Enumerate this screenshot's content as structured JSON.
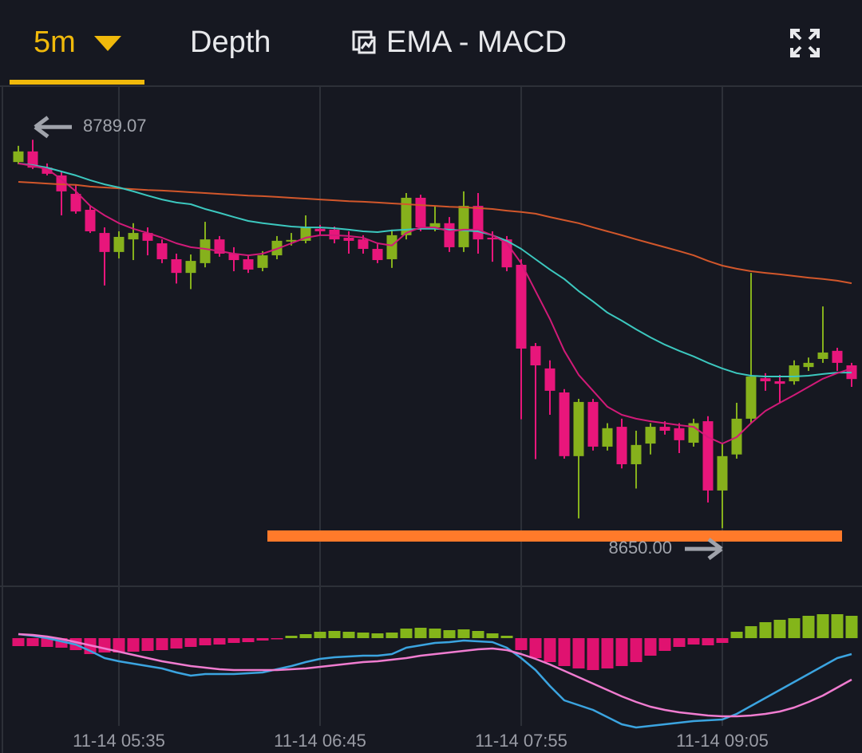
{
  "toolbar": {
    "interval": "5m",
    "tabs": [
      "Depth",
      "EMA - MACD"
    ]
  },
  "chart_data": {
    "type": "candlestick",
    "categories": [
      null,
      null,
      null,
      null,
      null,
      null,
      null,
      "11-14 05:35",
      null,
      null,
      null,
      null,
      null,
      null,
      null,
      null,
      null,
      null,
      null,
      null,
      null,
      "11-14 06:45",
      null,
      null,
      null,
      null,
      null,
      null,
      null,
      null,
      null,
      null,
      null,
      null,
      null,
      "11-14 07:55",
      null,
      null,
      null,
      null,
      null,
      null,
      null,
      null,
      null,
      null,
      null,
      null,
      null,
      "11-14 09:05",
      null,
      null,
      null,
      null,
      null,
      null,
      null,
      null,
      null
    ],
    "ylim": [
      8629.2,
      8807.7
    ],
    "up_color": "#86b11c",
    "down_color": "#e8167b",
    "open": [
      8781.1,
      8784.9,
      8779.1,
      8776.3,
      8769.7,
      8764.0,
      8755.7,
      8748.9,
      8753.4,
      8755.7,
      8752.0,
      8746.3,
      8741.4,
      8744.9,
      8753.4,
      8748.3,
      8746.3,
      8743.2,
      8747.7,
      8752.9,
      8752.9,
      8757.2,
      8756.9,
      8754.0,
      8753.4,
      8750.0,
      8746.3,
      8754.9,
      8768.3,
      8757.7,
      8759.2,
      8750.6,
      8765.4,
      8754.0,
      8753.4,
      8744.3,
      8715.2,
      8707.2,
      8698.6,
      8675.8,
      8695.2,
      8679.2,
      8686.3,
      8672.9,
      8680.3,
      8686.3,
      8685.8,
      8680.6,
      8688.3,
      8663.5,
      8676.4,
      8689.2,
      8703.7,
      8702.6,
      8702.6,
      8707.7,
      8710.6,
      8713.5,
      8708.3
    ],
    "close": [
      8784.9,
      8779.1,
      8776.9,
      8770.6,
      8763.4,
      8756.3,
      8748.9,
      8754.3,
      8755.7,
      8752.9,
      8746.3,
      8741.4,
      8745.7,
      8753.4,
      8748.3,
      8746.0,
      8742.6,
      8747.7,
      8752.9,
      8753.2,
      8757.7,
      8756.3,
      8753.4,
      8752.9,
      8750.0,
      8746.0,
      8754.9,
      8768.3,
      8757.7,
      8759.2,
      8750.6,
      8765.4,
      8753.4,
      8753.4,
      8743.4,
      8714.3,
      8708.3,
      8699.2,
      8675.8,
      8695.2,
      8679.2,
      8685.8,
      8672.9,
      8679.8,
      8686.3,
      8684.9,
      8681.5,
      8687.6,
      8663.5,
      8675.8,
      8689.2,
      8704.3,
      8702.6,
      8701.7,
      8708.3,
      8709.2,
      8712.9,
      8709.2,
      8703.4
    ],
    "high": [
      8786.9,
      8789.07,
      8780.6,
      8777.7,
      8772.9,
      8765.4,
      8757.7,
      8756.3,
      8759.2,
      8757.7,
      8753.4,
      8748.3,
      8748.0,
      8759.7,
      8754.6,
      8750.6,
      8748.0,
      8749.2,
      8754.6,
      8755.7,
      8762.0,
      8758.6,
      8758.0,
      8756.3,
      8754.9,
      8751.7,
      8756.9,
      8770.0,
      8769.4,
      8765.4,
      8761.4,
      8770.6,
      8770.0,
      8756.3,
      8754.6,
      8746.3,
      8716.3,
      8710.1,
      8699.8,
      8696.3,
      8696.3,
      8687.6,
      8689.2,
      8684.9,
      8687.6,
      8688.3,
      8687.6,
      8689.2,
      8690.1,
      8680.6,
      8694.9,
      8741.4,
      8705.5,
      8704.9,
      8710.1,
      8711.1,
      8729.4,
      8714.6,
      8709.2
    ],
    "low": [
      8780.3,
      8778.6,
      8776.3,
      8762.0,
      8762.6,
      8755.7,
      8736.9,
      8746.6,
      8746.0,
      8747.7,
      8744.9,
      8737.6,
      8735.6,
      8743.4,
      8747.2,
      8742.0,
      8741.4,
      8742.0,
      8746.3,
      8751.2,
      8752.0,
      8754.9,
      8752.0,
      8748.3,
      8748.3,
      8744.9,
      8743.2,
      8753.4,
      8756.3,
      8756.3,
      8748.9,
      8748.9,
      8748.3,
      8745.4,
      8742.0,
      8689.0,
      8674.7,
      8690.6,
      8674.9,
      8653.5,
      8677.8,
      8677.8,
      8671.4,
      8664.2,
      8676.4,
      8683.5,
      8676.9,
      8679.2,
      8659.2,
      8650,
      8674.9,
      8687.6,
      8699.2,
      8694.9,
      8701.4,
      8706.3,
      8709.2,
      8706.3,
      8700.6
    ],
    "lines": [
      {
        "color": "#d2572b",
        "values": [
          8774.0,
          8773.7,
          8773.4,
          8773.1,
          8772.9,
          8772.3,
          8772.0,
          8771.7,
          8771.4,
          8771.1,
          8770.9,
          8770.6,
          8770.3,
          8770.0,
          8769.7,
          8769.4,
          8769.1,
          8768.9,
          8768.6,
          8768.3,
          8768.0,
          8767.7,
          8767.4,
          8767.1,
          8766.9,
          8766.6,
          8766.3,
          8766.0,
          8765.7,
          8765.4,
          8765.1,
          8764.9,
          8764.6,
          8764.3,
          8763.7,
          8763.2,
          8762.6,
          8761.4,
          8760.3,
          8759.2,
          8757.7,
          8756.3,
          8754.9,
          8753.4,
          8752.0,
          8750.6,
          8749.2,
          8747.7,
          8745.7,
          8744.0,
          8742.9,
          8742.0,
          8741.4,
          8740.9,
          8740.3,
          8739.7,
          8739.2,
          8738.6,
          8737.7
        ]
      },
      {
        "color": "#3cc8bf",
        "values": [
          8780.6,
          8780.0,
          8779.1,
          8777.7,
          8776.3,
          8774.6,
          8773.1,
          8772.0,
          8770.6,
          8769.1,
          8767.7,
          8766.6,
          8766.0,
          8764.3,
          8762.9,
          8761.4,
          8760.0,
          8759.2,
          8758.6,
          8758.0,
          8757.7,
          8757.7,
          8757.4,
          8756.9,
          8756.3,
          8756.0,
          8756.6,
          8756.9,
          8757.2,
          8757.2,
          8756.9,
          8756.6,
          8756.3,
          8754.9,
          8752.9,
          8750.0,
          8746.3,
          8742.6,
          8739.2,
          8734.9,
          8731.2,
          8727.2,
          8724.3,
          8721.2,
          8718.3,
          8715.7,
          8713.5,
          8711.5,
          8709.2,
          8707.2,
          8705.5,
          8704.6,
          8704.3,
          8704.3,
          8704.3,
          8704.6,
          8705.2,
          8705.7,
          8705.7
        ]
      },
      {
        "color": "#d11a78",
        "values": [
          8780.6,
          8779.7,
          8778.6,
          8774.9,
          8770.6,
          8765.4,
          8762.0,
          8759.2,
          8757.2,
          8755.7,
          8754.0,
          8752.0,
          8750.6,
          8750.0,
          8749.2,
          8748.3,
          8747.7,
          8748.3,
          8750.0,
          8752.0,
          8754.0,
          8754.9,
          8754.9,
          8754.6,
          8754.0,
          8752.0,
          8751.2,
          8755.7,
          8757.7,
          8757.7,
          8756.3,
          8756.9,
          8756.9,
          8754.9,
          8752.0,
          8744.9,
          8734.9,
          8724.9,
          8713.5,
          8704.9,
          8699.2,
          8693.5,
          8690.6,
          8689.2,
          8688.3,
          8687.6,
          8686.9,
          8686.3,
          8682.6,
          8680.3,
          8682.6,
          8687.6,
          8692.0,
          8694.9,
          8697.7,
          8700.6,
          8703.5,
          8705.5,
          8707.2
        ]
      }
    ],
    "annotations": [
      {
        "value": 8789.07,
        "label": "8789.07"
      },
      {
        "value": 8650,
        "label": "8650.00"
      }
    ],
    "level_line": {
      "value": 8647.2,
      "color": "#ff7a2a"
    },
    "macd": {
      "ylim": [
        -11.5,
        6
      ],
      "up_color": "#84b51a",
      "down_color": "#e01270",
      "histogram": [
        -1.0,
        -1.0,
        -1.1,
        -1.2,
        -1.5,
        -2.0,
        -1.8,
        -1.8,
        -1.7,
        -1.6,
        -1.5,
        -1.3,
        -1.1,
        -0.9,
        -0.8,
        -0.6,
        -0.5,
        -0.3,
        -0.1,
        0.3,
        0.5,
        0.8,
        0.9,
        0.8,
        0.7,
        0.6,
        0.7,
        1.2,
        1.3,
        1.2,
        1.0,
        1.1,
        0.9,
        0.6,
        0.3,
        -1.5,
        -2.5,
        -3.0,
        -3.5,
        -3.8,
        -4.0,
        -3.8,
        -3.5,
        -3.0,
        -2.2,
        -1.6,
        -1.1,
        -0.8,
        -0.9,
        -0.6,
        0.8,
        1.5,
        2.0,
        2.3,
        2.5,
        2.8,
        3.0,
        3.0,
        2.8
      ],
      "lines": [
        {
          "color": "#3ba4e0",
          "values": [
            0.5,
            0.3,
            0.0,
            -0.4,
            -0.8,
            -1.6,
            -2.5,
            -2.9,
            -3.2,
            -3.5,
            -3.8,
            -4.3,
            -4.7,
            -4.5,
            -4.5,
            -4.5,
            -4.4,
            -4.3,
            -3.9,
            -3.5,
            -3.0,
            -2.6,
            -2.4,
            -2.3,
            -2.2,
            -2.2,
            -2.0,
            -1.2,
            -0.9,
            -0.6,
            -0.5,
            -0.3,
            -0.4,
            -0.5,
            -1.2,
            -2.5,
            -4.0,
            -6.0,
            -7.8,
            -8.4,
            -9.0,
            -9.9,
            -10.8,
            -11.2,
            -11.0,
            -10.8,
            -10.6,
            -10.4,
            -10.3,
            -10.2,
            -9.5,
            -8.5,
            -7.5,
            -6.5,
            -5.5,
            -4.5,
            -3.5,
            -2.5,
            -2.0
          ]
        },
        {
          "color": "#f07cd0",
          "values": [
            0.5,
            0.4,
            0.2,
            -0.1,
            -0.5,
            -0.9,
            -1.3,
            -1.7,
            -2.1,
            -2.5,
            -2.9,
            -3.2,
            -3.5,
            -3.7,
            -3.9,
            -4.0,
            -4.0,
            -4.0,
            -4.0,
            -3.9,
            -3.8,
            -3.6,
            -3.4,
            -3.2,
            -3.0,
            -2.9,
            -2.7,
            -2.5,
            -2.2,
            -2.0,
            -1.8,
            -1.6,
            -1.4,
            -1.3,
            -1.5,
            -2.0,
            -2.6,
            -3.3,
            -4.1,
            -4.9,
            -5.7,
            -6.5,
            -7.3,
            -8.0,
            -8.6,
            -9.0,
            -9.3,
            -9.5,
            -9.7,
            -9.8,
            -9.8,
            -9.7,
            -9.5,
            -9.2,
            -8.7,
            -8.0,
            -7.2,
            -6.2,
            -5.2
          ]
        }
      ]
    }
  }
}
